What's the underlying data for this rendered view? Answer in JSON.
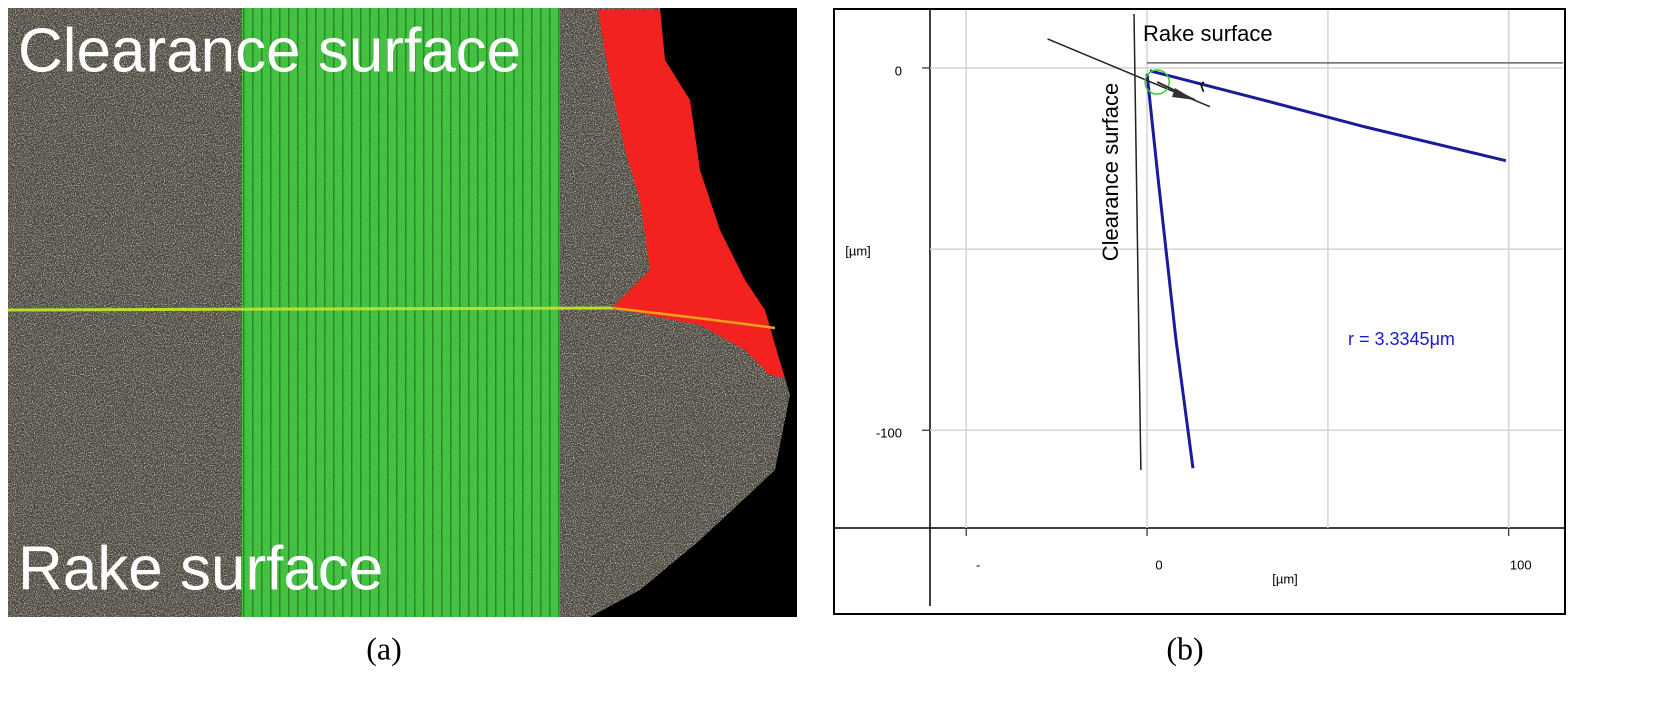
{
  "figure": {
    "panel_a": {
      "top_label": "Clearance surface",
      "bottom_label": "Rake surface"
    },
    "captions": [
      "(a)",
      "(b)"
    ]
  },
  "chart_data": {
    "type": "line",
    "xlabel": "[µm]",
    "ylabel": "[µm]",
    "annotations": {
      "rake": "Rake surface",
      "clearance": "Clearance surface",
      "radius_arrow": "r"
    },
    "xlim": [
      -60,
      115
    ],
    "ylim": [
      -127,
      16
    ],
    "xticks": [
      {
        "value": -50,
        "label": "-"
      },
      0,
      100
    ],
    "yticks": [
      0,
      -100
    ],
    "xgrid": [
      -50,
      0,
      50,
      100
    ],
    "ygrid": [
      0,
      -50,
      -100
    ],
    "grid": true,
    "series": [
      {
        "color": "#1a1a9c",
        "x": [
          0.8,
          30,
          60,
          99.2
        ],
        "values": [
          -0.8,
          -8.3,
          -16.2,
          -25.6
        ]
      },
      {
        "color": "#1a1a9c",
        "x": [
          0,
          3,
          8,
          12.7
        ],
        "values": [
          -1.6,
          -30,
          -75,
          -110.5
        ]
      },
      {
        "color": "#222222",
        "x": [
          -27.5,
          17.4
        ],
        "values": [
          8,
          -10.7
        ]
      },
      {
        "color": "#222222",
        "x": [
          -3.6,
          -1.7
        ],
        "values": [
          14.9,
          -111
        ]
      },
      {
        "color": "#666666",
        "x": [
          0,
          115
        ],
        "values": [
          1.4,
          1.4
        ]
      }
    ],
    "fit_circle": {
      "cx": 2.8,
      "cy": -3.9,
      "r": 3.3345,
      "color": "#33cc33",
      "label": "r = 3.3345μm",
      "label_color": "#1a1ad0"
    }
  }
}
